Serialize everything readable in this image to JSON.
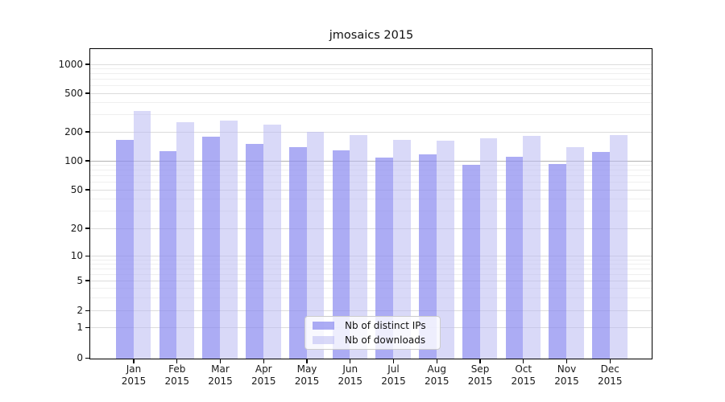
{
  "title": "jmosaics 2015",
  "chart_data": {
    "type": "bar",
    "title": "jmosaics 2015",
    "yscale": "log-like (symlog: log above ~2, compressed linear segment down to 0)",
    "grid": true,
    "legend_position": "lower center",
    "categories": [
      "Jan",
      "Feb",
      "Mar",
      "Apr",
      "May",
      "Jun",
      "Jul",
      "Aug",
      "Sep",
      "Oct",
      "Nov",
      "Dec"
    ],
    "year": "2015",
    "series": [
      {
        "name": "Nb of distinct IPs",
        "color": "#8c8cf0",
        "alpha": 0.72,
        "values": [
          165,
          127,
          181,
          150,
          140,
          129,
          109,
          117,
          92,
          110,
          94,
          124
        ]
      },
      {
        "name": "Nb of downloads",
        "color": "#b9b9f3",
        "alpha": 0.55,
        "values": [
          330,
          252,
          261,
          238,
          201,
          188,
          165,
          162,
          172,
          182,
          139,
          185
        ]
      }
    ],
    "yticks": [
      1000,
      500,
      200,
      100,
      50,
      20,
      10,
      5,
      2,
      1,
      0
    ],
    "minor_gridlines": [
      900,
      800,
      700,
      600,
      400,
      300,
      90,
      80,
      70,
      60,
      40,
      30,
      9,
      8,
      7,
      6,
      4,
      3
    ],
    "emphasized_gridline": 100,
    "ylim": [
      0,
      1400
    ]
  },
  "colors": {
    "background": "#ffffff",
    "grid_major": "#dcdcdc",
    "grid_minor": "#efefef",
    "grid_emphasis": "#b3b3b3",
    "axis": "#000000",
    "text": "#1a1a1a"
  }
}
